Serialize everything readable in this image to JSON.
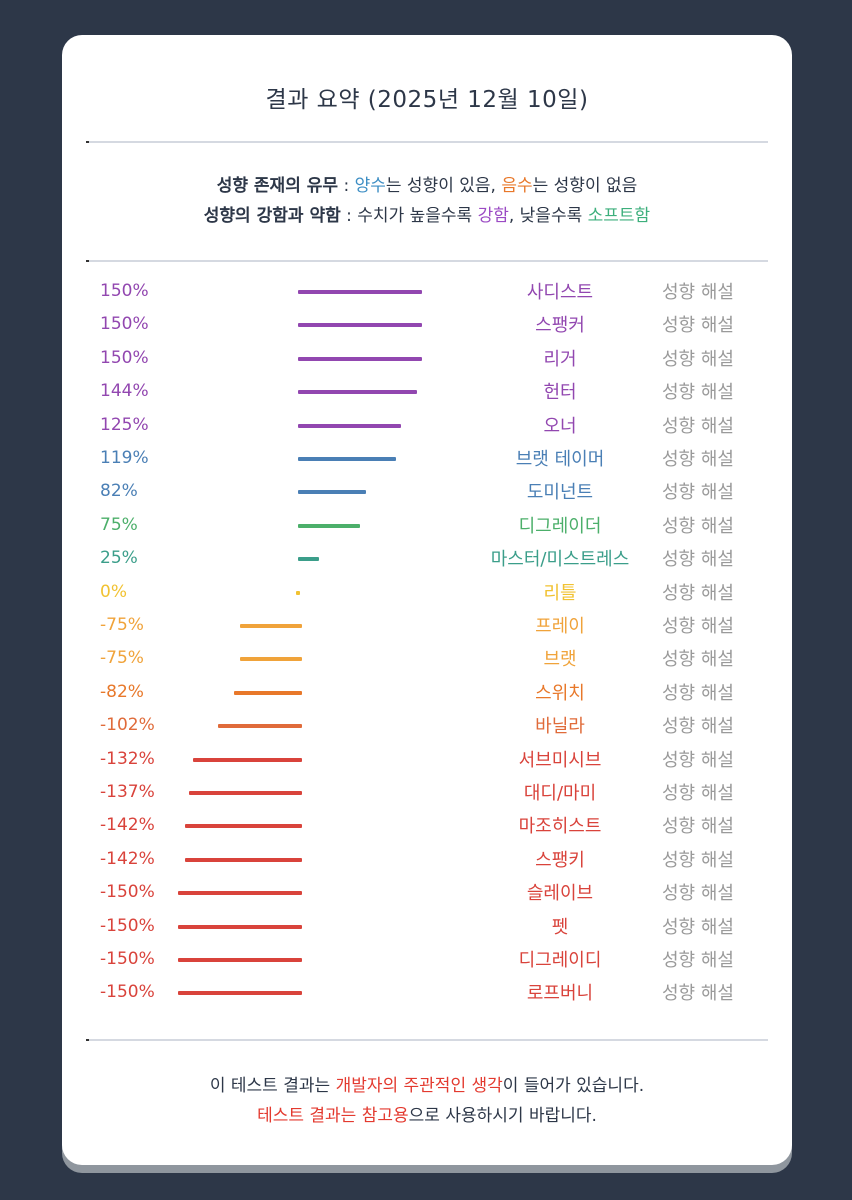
{
  "title": "결과 요약 (2025년 12월 10일)",
  "legend": {
    "line1": [
      {
        "text": "성향 존재의 유무",
        "cls": "b"
      },
      {
        "text": " : ",
        "cls": ""
      },
      {
        "text": "양수",
        "cls": "c-blue"
      },
      {
        "text": "는 성향이 있음, ",
        "cls": ""
      },
      {
        "text": "음수",
        "cls": "c-orange"
      },
      {
        "text": "는 성향이 없음",
        "cls": ""
      }
    ],
    "line2": [
      {
        "text": "성향의 강함과 약함",
        "cls": "b"
      },
      {
        "text": " : 수치가 높을수록 ",
        "cls": ""
      },
      {
        "text": "강함",
        "cls": "c-purple"
      },
      {
        "text": ", 낮을수록 ",
        "cls": ""
      },
      {
        "text": "소프트함",
        "cls": "c-green"
      }
    ]
  },
  "explain_label": "성향 해설",
  "footer": {
    "line1": [
      {
        "text": "이 테스트 결과는 ",
        "cls": ""
      },
      {
        "text": "개발자의 주관적인 생각",
        "cls": "c-red"
      },
      {
        "text": "이 들어가 있습니다.",
        "cls": ""
      }
    ],
    "line2": [
      {
        "text": "테스트 결과는 참고용",
        "cls": "c-red"
      },
      {
        "text": "으로 사용하시기 바랍니다.",
        "cls": ""
      }
    ]
  },
  "chart_data": {
    "type": "bar",
    "orientation": "horizontal",
    "unit": "%",
    "xlim": [
      -150,
      150
    ],
    "categories": [
      "사디스트",
      "스팽커",
      "리거",
      "헌터",
      "오너",
      "브랫 테이머",
      "도미넌트",
      "디그레이더",
      "마스터/미스트레스",
      "리틀",
      "프레이",
      "브랫",
      "스위치",
      "바닐라",
      "서브미시브",
      "대디/마미",
      "마조히스트",
      "스팽키",
      "슬레이브",
      "펫",
      "디그레이디",
      "로프버니"
    ],
    "values": [
      150,
      150,
      150,
      144,
      125,
      119,
      82,
      75,
      25,
      0,
      -75,
      -75,
      -82,
      -102,
      -132,
      -137,
      -142,
      -142,
      -150,
      -150,
      -150,
      -150
    ],
    "labels": [
      "150%",
      "150%",
      "150%",
      "144%",
      "125%",
      "119%",
      "82%",
      "75%",
      "25%",
      "0%",
      "-75%",
      "-75%",
      "-82%",
      "-102%",
      "-132%",
      "-137%",
      "-142%",
      "-142%",
      "-150%",
      "-150%",
      "-150%",
      "-150%"
    ],
    "colors": [
      "#9247b0",
      "#9247b0",
      "#9247b0",
      "#9247b0",
      "#9247b0",
      "#4a7fb5",
      "#4a7fb5",
      "#4caf6a",
      "#3b9e8a",
      "#f1c232",
      "#f0a33a",
      "#f0a33a",
      "#e8782a",
      "#e06b3a",
      "#d9433b",
      "#d9433b",
      "#d9433b",
      "#d9433b",
      "#d9433b",
      "#d9433b",
      "#d9433b",
      "#d9433b"
    ]
  }
}
